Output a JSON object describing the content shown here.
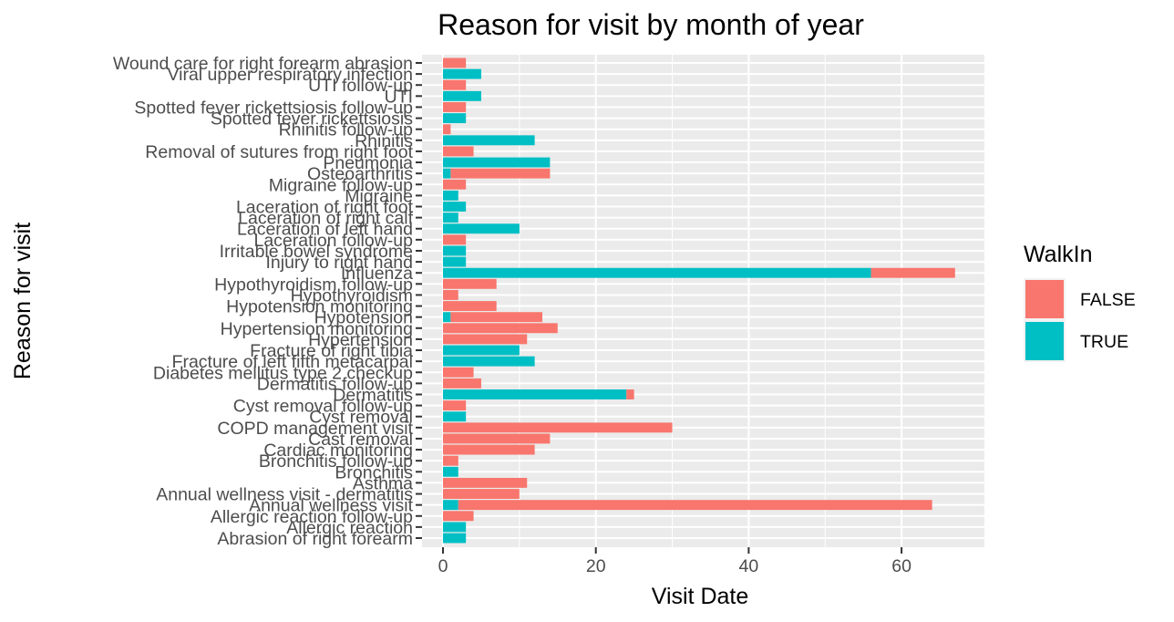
{
  "chart_data": {
    "type": "bar",
    "orientation": "horizontal",
    "stacked": true,
    "title": "Reason for visit by month of year",
    "xlabel": "Visit Date",
    "ylabel": "Reason for visit",
    "xlim": [
      0,
      70
    ],
    "x_ticks": [
      0,
      20,
      40,
      60
    ],
    "grid": true,
    "legend": {
      "title": "WalkIn",
      "position": "right"
    },
    "categories": [
      "Abrasion of right forearm",
      "Allergic reaction",
      "Allergic reaction follow-up",
      "Annual wellness visit",
      "Annual wellness visit - dermatitis",
      "Asthma",
      "Bronchitis",
      "Bronchitis follow-up",
      "Cardiac monitoring",
      "Cast removal",
      "COPD management visit",
      "Cyst removal",
      "Cyst removal follow-up",
      "Dermatitis",
      "Dermatitis follow-up",
      "Diabetes mellitus type 2 checkup",
      "Fracture of left fifth metacarpal",
      "Fracture of right tibia",
      "Hypertension",
      "Hypertension monitoring",
      "Hypotension",
      "Hypotension monitoring",
      "Hypothyroidism",
      "Hypothyroidism follow-up",
      "Influenza",
      "Injury to right hand",
      "Irritable bowel syndrome",
      "Laceration follow-up",
      "Laceration of left hand",
      "Laceration of right calf",
      "Laceration of right foot",
      "Migraine",
      "Migraine follow-up",
      "Osteoarthritis",
      "Pneumonia",
      "Removal of sutures from right foot",
      "Rhinitis",
      "Rhinitis follow-up",
      "Spotted fever rickettsiosis",
      "Spotted fever rickettsiosis follow-up",
      "UTI",
      "UTI follow-up",
      "Viral upper respiratory infection",
      "Wound care for right forearm abrasion"
    ],
    "series": [
      {
        "name": "FALSE",
        "color": "#F8766D",
        "values": [
          0,
          0,
          4,
          62,
          10,
          11,
          0,
          2,
          12,
          14,
          30,
          0,
          3,
          1,
          5,
          4,
          0,
          0,
          11,
          15,
          12,
          7,
          2,
          7,
          11,
          0,
          0,
          3,
          0,
          0,
          0,
          0,
          3,
          13,
          0,
          4,
          0,
          1,
          0,
          3,
          0,
          3,
          0,
          3
        ]
      },
      {
        "name": "TRUE",
        "color": "#00BFC4",
        "values": [
          3,
          3,
          0,
          2,
          0,
          0,
          2,
          0,
          0,
          0,
          0,
          3,
          0,
          24,
          0,
          0,
          12,
          10,
          0,
          0,
          1,
          0,
          0,
          0,
          56,
          3,
          3,
          0,
          10,
          2,
          3,
          2,
          0,
          1,
          14,
          0,
          12,
          0,
          3,
          0,
          5,
          0,
          5,
          0
        ]
      }
    ]
  }
}
